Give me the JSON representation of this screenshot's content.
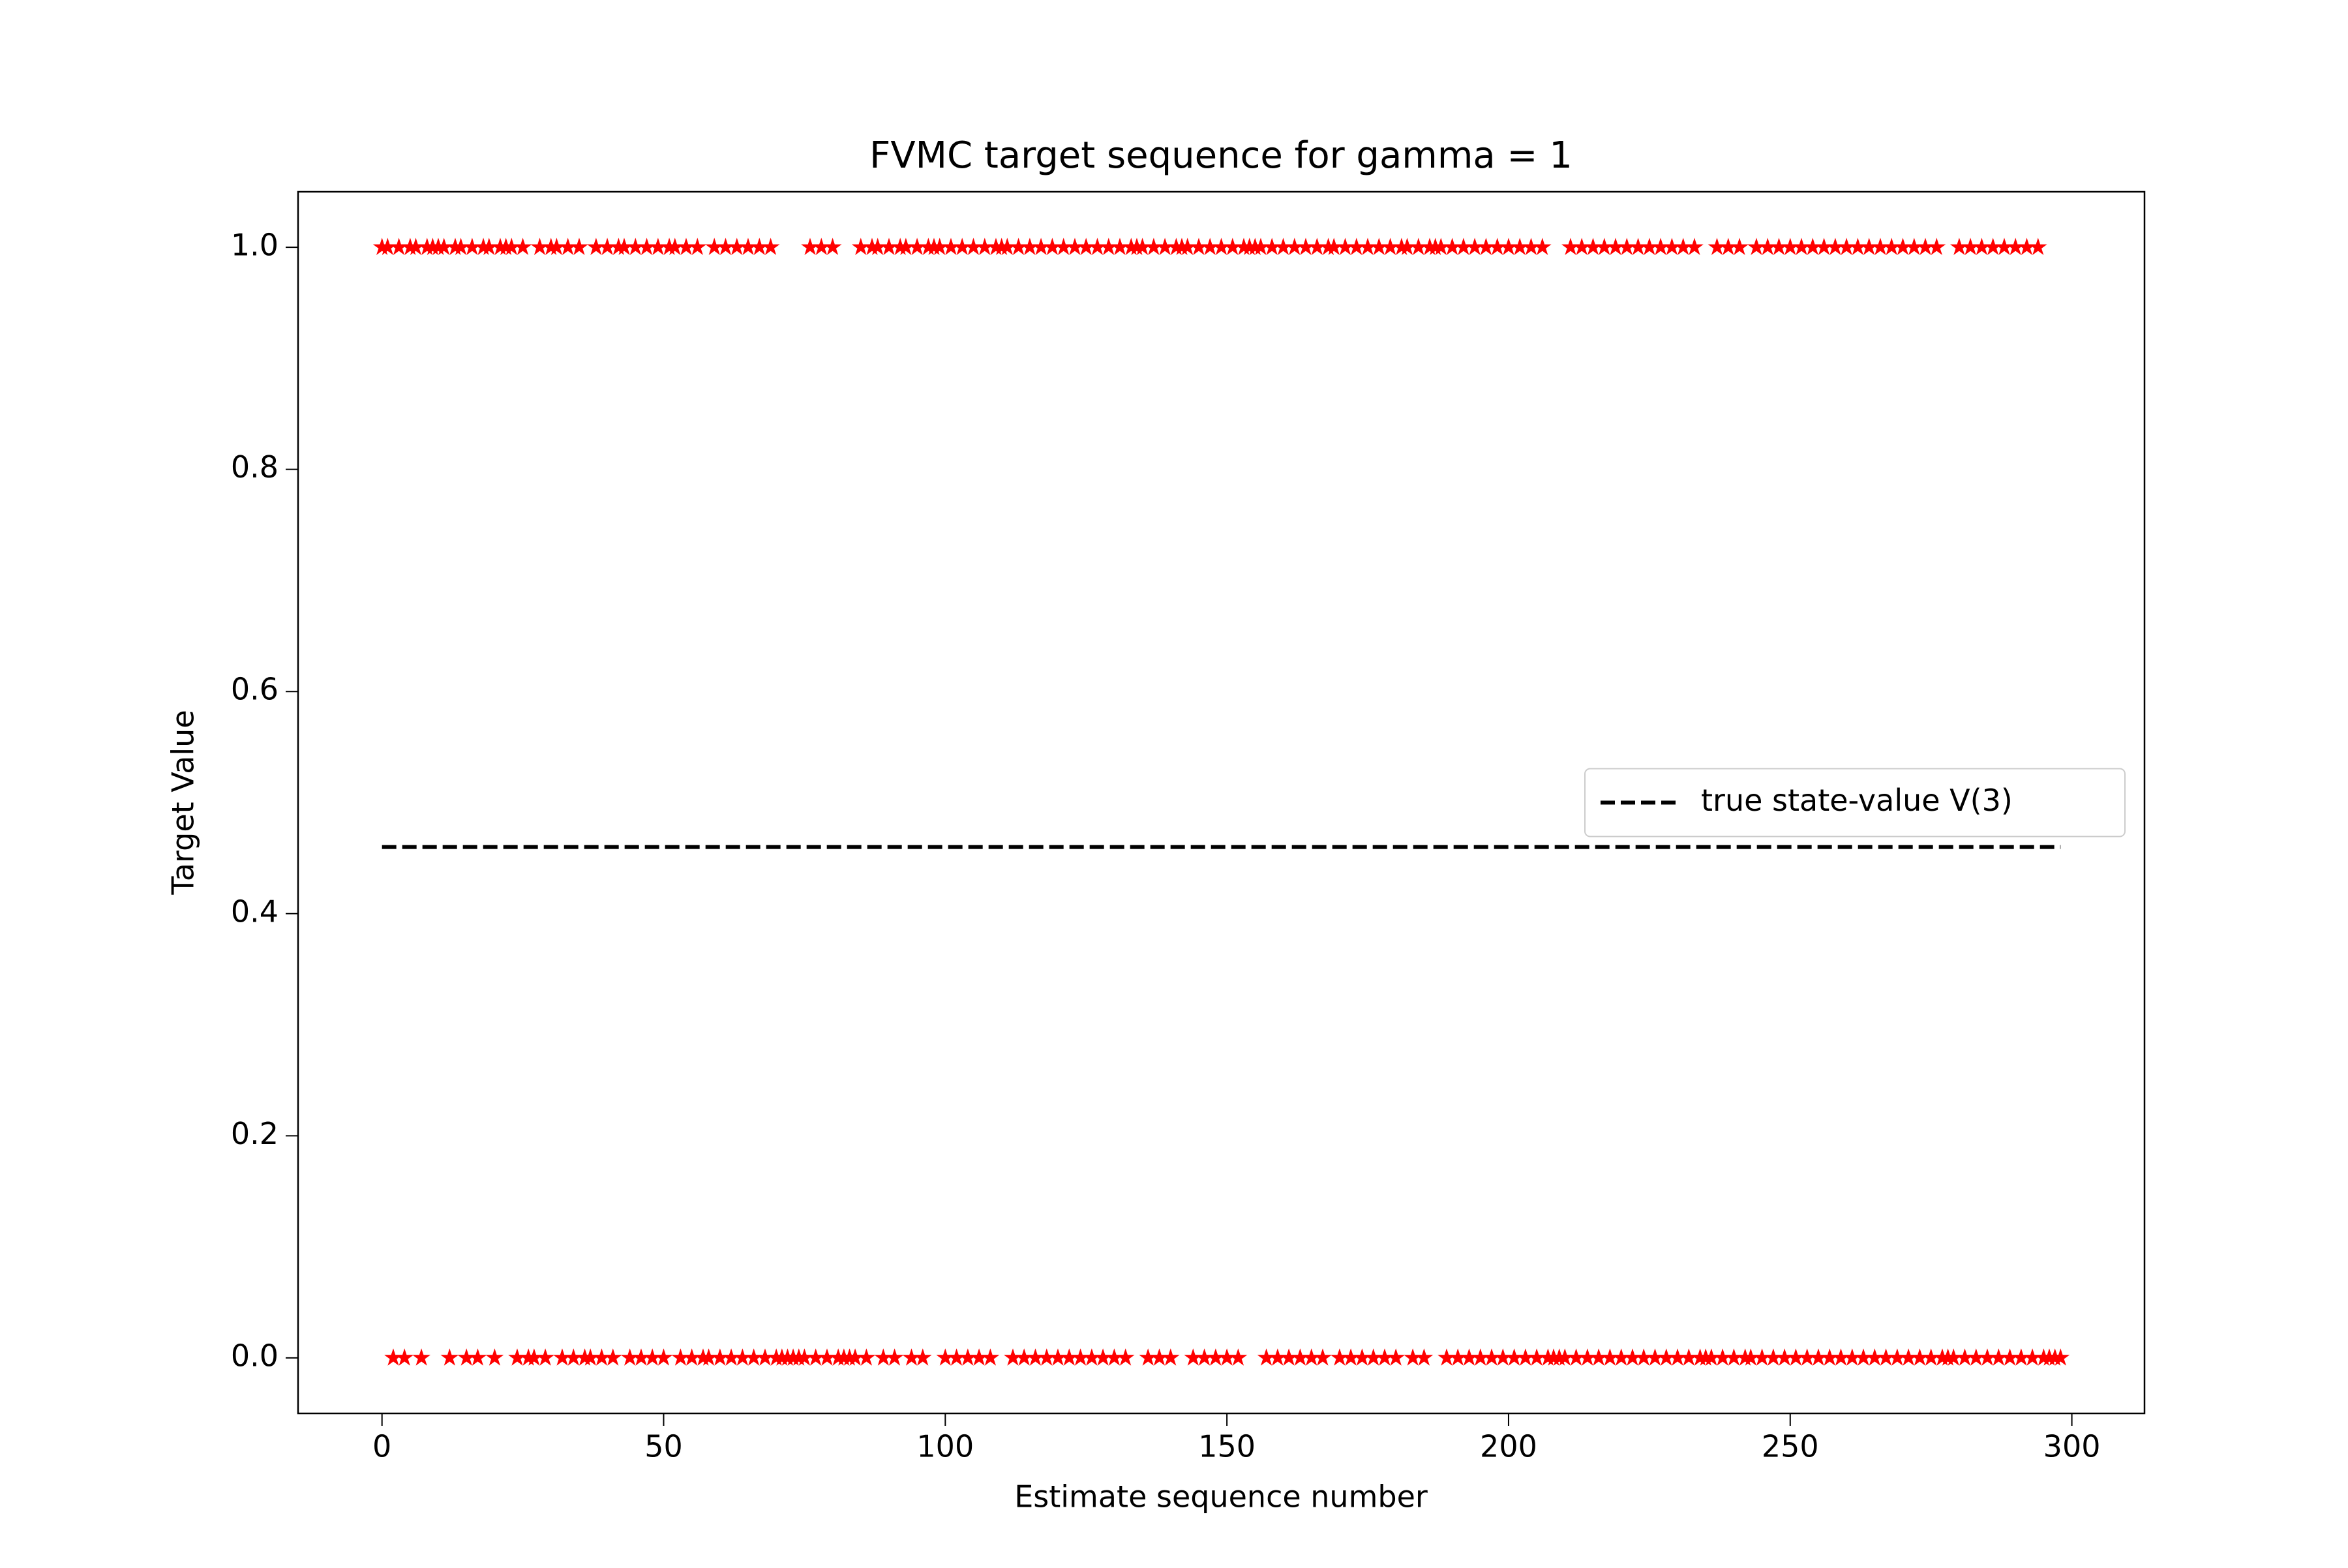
{
  "chart_data": {
    "type": "scatter",
    "title": "FVMC target sequence for gamma = 1",
    "xlabel": "Estimate sequence number",
    "ylabel": "Target Value",
    "xlim": [
      -14.9,
      312.9
    ],
    "ylim": [
      -0.05,
      1.05
    ],
    "xticks": [
      0,
      50,
      100,
      150,
      200,
      250,
      300
    ],
    "yticks": [
      {
        "value": 0,
        "label": "0.0"
      },
      {
        "value": 0.2,
        "label": "0.2"
      },
      {
        "value": 0.4,
        "label": "0.4"
      },
      {
        "value": 0.6,
        "label": "0.6"
      },
      {
        "value": 0.8,
        "label": "0.8"
      },
      {
        "value": 1,
        "label": "1.0"
      }
    ],
    "legend": "center right",
    "series": [
      {
        "type": "scatter",
        "marker": "star",
        "color": "#ff0000",
        "x": [
          0,
          1,
          2,
          3,
          4,
          5,
          6,
          7,
          8,
          9,
          10,
          11,
          12,
          13,
          14,
          15,
          16,
          17,
          18,
          19,
          20,
          21,
          22,
          23,
          24,
          25,
          26,
          27,
          28,
          29,
          30,
          31,
          32,
          33,
          34,
          35,
          36,
          37,
          38,
          39,
          40,
          41,
          42,
          43,
          44,
          45,
          46,
          47,
          48,
          49,
          50,
          51,
          52,
          53,
          54,
          55,
          56,
          57,
          58,
          59,
          60,
          61,
          62,
          63,
          64,
          65,
          66,
          67,
          68,
          69,
          70,
          71,
          72,
          73,
          74,
          75,
          76,
          77,
          78,
          79,
          80,
          81,
          82,
          83,
          84,
          85,
          86,
          87,
          88,
          89,
          90,
          91,
          92,
          93,
          94,
          95,
          96,
          97,
          98,
          99,
          100,
          101,
          102,
          103,
          104,
          105,
          106,
          107,
          108,
          109,
          110,
          111,
          112,
          113,
          114,
          115,
          116,
          117,
          118,
          119,
          120,
          121,
          122,
          123,
          124,
          125,
          126,
          127,
          128,
          129,
          130,
          131,
          132,
          133,
          134,
          135,
          136,
          137,
          138,
          139,
          140,
          141,
          142,
          143,
          144,
          145,
          146,
          147,
          148,
          149,
          150,
          151,
          152,
          153,
          154,
          155,
          156,
          157,
          158,
          159,
          160,
          161,
          162,
          163,
          164,
          165,
          166,
          167,
          168,
          169,
          170,
          171,
          172,
          173,
          174,
          175,
          176,
          177,
          178,
          179,
          180,
          181,
          182,
          183,
          184,
          185,
          186,
          187,
          188,
          189,
          190,
          191,
          192,
          193,
          194,
          195,
          196,
          197,
          198,
          199,
          200,
          201,
          202,
          203,
          204,
          205,
          206,
          207,
          208,
          209,
          210,
          211,
          212,
          213,
          214,
          215,
          216,
          217,
          218,
          219,
          220,
          221,
          222,
          223,
          224,
          225,
          226,
          227,
          228,
          229,
          230,
          231,
          232,
          233,
          234,
          235,
          236,
          237,
          238,
          239,
          240,
          241,
          242,
          243,
          244,
          245,
          246,
          247,
          248,
          249,
          250,
          251,
          252,
          253,
          254,
          255,
          256,
          257,
          258,
          259,
          260,
          261,
          262,
          263,
          264,
          265,
          266,
          267,
          268,
          269,
          270,
          271,
          272,
          273,
          274,
          275,
          276,
          277,
          278,
          279,
          280,
          281,
          282,
          283,
          284,
          285,
          286,
          287,
          288,
          289,
          290,
          291,
          292,
          293,
          294,
          295,
          296,
          297,
          298
        ],
        "values": [
          1,
          1,
          0,
          1,
          0,
          1,
          1,
          0,
          1,
          1,
          1,
          1,
          0,
          1,
          1,
          0,
          1,
          0,
          1,
          1,
          0,
          1,
          1,
          1,
          0,
          1,
          0,
          0,
          1,
          0,
          1,
          1,
          0,
          1,
          0,
          1,
          0,
          0,
          1,
          0,
          1,
          0,
          1,
          1,
          0,
          1,
          0,
          1,
          0,
          1,
          0,
          1,
          1,
          0,
          1,
          0,
          1,
          0,
          0,
          1,
          0,
          1,
          0,
          1,
          0,
          1,
          0,
          1,
          0,
          1,
          0,
          0,
          0,
          0,
          0,
          0,
          1,
          0,
          1,
          0,
          1,
          0,
          0,
          0,
          0,
          1,
          0,
          1,
          1,
          0,
          1,
          0,
          1,
          1,
          0,
          1,
          0,
          1,
          1,
          1,
          0,
          1,
          0,
          1,
          0,
          1,
          0,
          1,
          0,
          1,
          1,
          1,
          0,
          1,
          0,
          1,
          0,
          1,
          0,
          1,
          0,
          1,
          0,
          1,
          0,
          1,
          0,
          1,
          0,
          1,
          0,
          1,
          0,
          1,
          1,
          1,
          0,
          1,
          0,
          1,
          0,
          1,
          1,
          1,
          0,
          1,
          0,
          1,
          0,
          1,
          0,
          1,
          0,
          1,
          1,
          1,
          1,
          0,
          1,
          0,
          1,
          0,
          1,
          0,
          1,
          0,
          1,
          0,
          1,
          1,
          0,
          1,
          0,
          1,
          0,
          1,
          0,
          1,
          0,
          1,
          0,
          1,
          1,
          0,
          1,
          0,
          1,
          1,
          1,
          0,
          1,
          0,
          1,
          0,
          1,
          0,
          1,
          0,
          1,
          0,
          1,
          0,
          1,
          0,
          1,
          0,
          1,
          0,
          0,
          0,
          0,
          1,
          0,
          1,
          0,
          1,
          0,
          1,
          0,
          1,
          0,
          1,
          0,
          1,
          0,
          1,
          0,
          1,
          0,
          1,
          0,
          1,
          0,
          1,
          0,
          0,
          0,
          1,
          0,
          1,
          0,
          1,
          0,
          0,
          1,
          0,
          1,
          0,
          1,
          0,
          1,
          0,
          1,
          0,
          1,
          0,
          1,
          0,
          1,
          0,
          1,
          0,
          1,
          0,
          1,
          0,
          1,
          0,
          1,
          0,
          1,
          0,
          1,
          0,
          1,
          0,
          1,
          0,
          0,
          0,
          1,
          0,
          1,
          0,
          1,
          0,
          1,
          0,
          1,
          0,
          1,
          0,
          1,
          0,
          1,
          0,
          0,
          0,
          0
        ]
      },
      {
        "type": "line",
        "name": "true state-value V(3)",
        "color": "#000000",
        "dashed": true,
        "x": [
          0,
          298
        ],
        "values": [
          0.46,
          0.46
        ]
      }
    ]
  }
}
